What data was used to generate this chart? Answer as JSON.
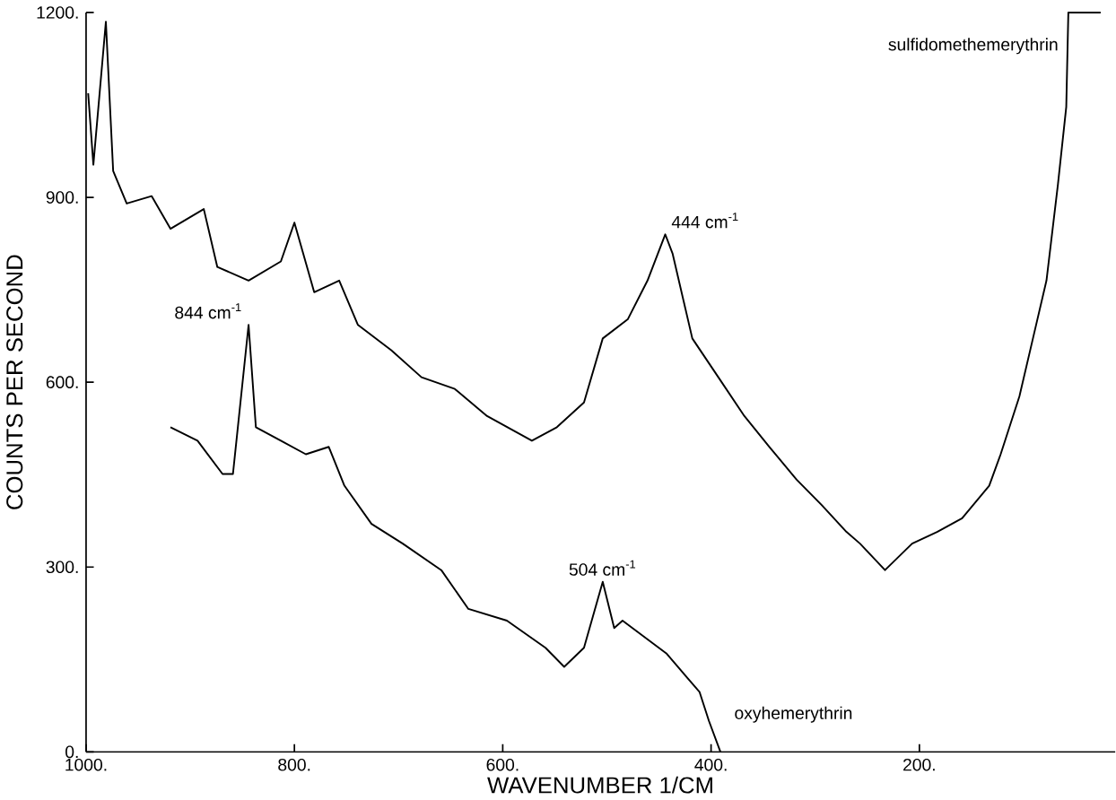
{
  "chart_data": {
    "type": "line",
    "xlabel": "WAVENUMBER 1/CM",
    "ylabel": "COUNTS PER SECOND",
    "xlim": [
      1000,
      12
    ],
    "ylim": [
      0,
      1200
    ],
    "xticks": [
      {
        "value": 1000,
        "label": "1000."
      },
      {
        "value": 800,
        "label": "800."
      },
      {
        "value": 600,
        "label": "600."
      },
      {
        "value": 400,
        "label": "400."
      },
      {
        "value": 200,
        "label": "200."
      }
    ],
    "yticks": [
      {
        "value": 0,
        "label": "0."
      },
      {
        "value": 300,
        "label": "300."
      },
      {
        "value": 600,
        "label": "600."
      },
      {
        "value": 900,
        "label": "900."
      },
      {
        "value": 1200,
        "label": "1200."
      }
    ],
    "grid": false,
    "legend": false,
    "marker": "none",
    "line_style": "solid",
    "series": [
      {
        "name": "sulfidomethemerythrin",
        "color": "#000000",
        "x": [
          998,
          993,
          981,
          974,
          961,
          937,
          919,
          887,
          874,
          844,
          813,
          800,
          781,
          757,
          739,
          707,
          678,
          646,
          615,
          572,
          548,
          522,
          504,
          480,
          461,
          444,
          437,
          418,
          393,
          368,
          344,
          318,
          294,
          270,
          257,
          233,
          207,
          183,
          159,
          133,
          122,
          104,
          91,
          78,
          67,
          59,
          57,
          26
        ],
        "values": [
          1069,
          953,
          1185,
          943,
          890,
          902,
          849,
          881,
          787,
          765,
          796,
          859,
          746,
          765,
          693,
          652,
          608,
          589,
          545,
          505,
          527,
          567,
          671,
          702,
          765,
          840,
          809,
          671,
          608,
          545,
          495,
          442,
          401,
          357,
          338,
          295,
          338,
          357,
          379,
          432,
          483,
          577,
          671,
          765,
          921,
          1047,
          1200,
          1200
        ]
      },
      {
        "name": "oxyhemerythrin",
        "color": "#000000",
        "x": [
          919,
          893,
          869,
          859,
          844,
          837,
          813,
          789,
          767,
          752,
          726,
          696,
          659,
          633,
          596,
          559,
          541,
          522,
          504,
          493,
          485,
          443,
          411,
          402,
          391
        ],
        "values": [
          527,
          505,
          451,
          451,
          693,
          527,
          505,
          483,
          495,
          432,
          370,
          338,
          295,
          232,
          213,
          169,
          138,
          169,
          276,
          201,
          213,
          160,
          97,
          50,
          0
        ]
      }
    ],
    "annotations": [
      {
        "text": "844 cm$^{-1}$",
        "x": 844,
        "y": 693
      },
      {
        "text": "504 cm$^{-1}$",
        "x": 504,
        "y": 276
      },
      {
        "text": "444 cm$^{-1}$",
        "x": 444,
        "y": 840
      }
    ]
  }
}
